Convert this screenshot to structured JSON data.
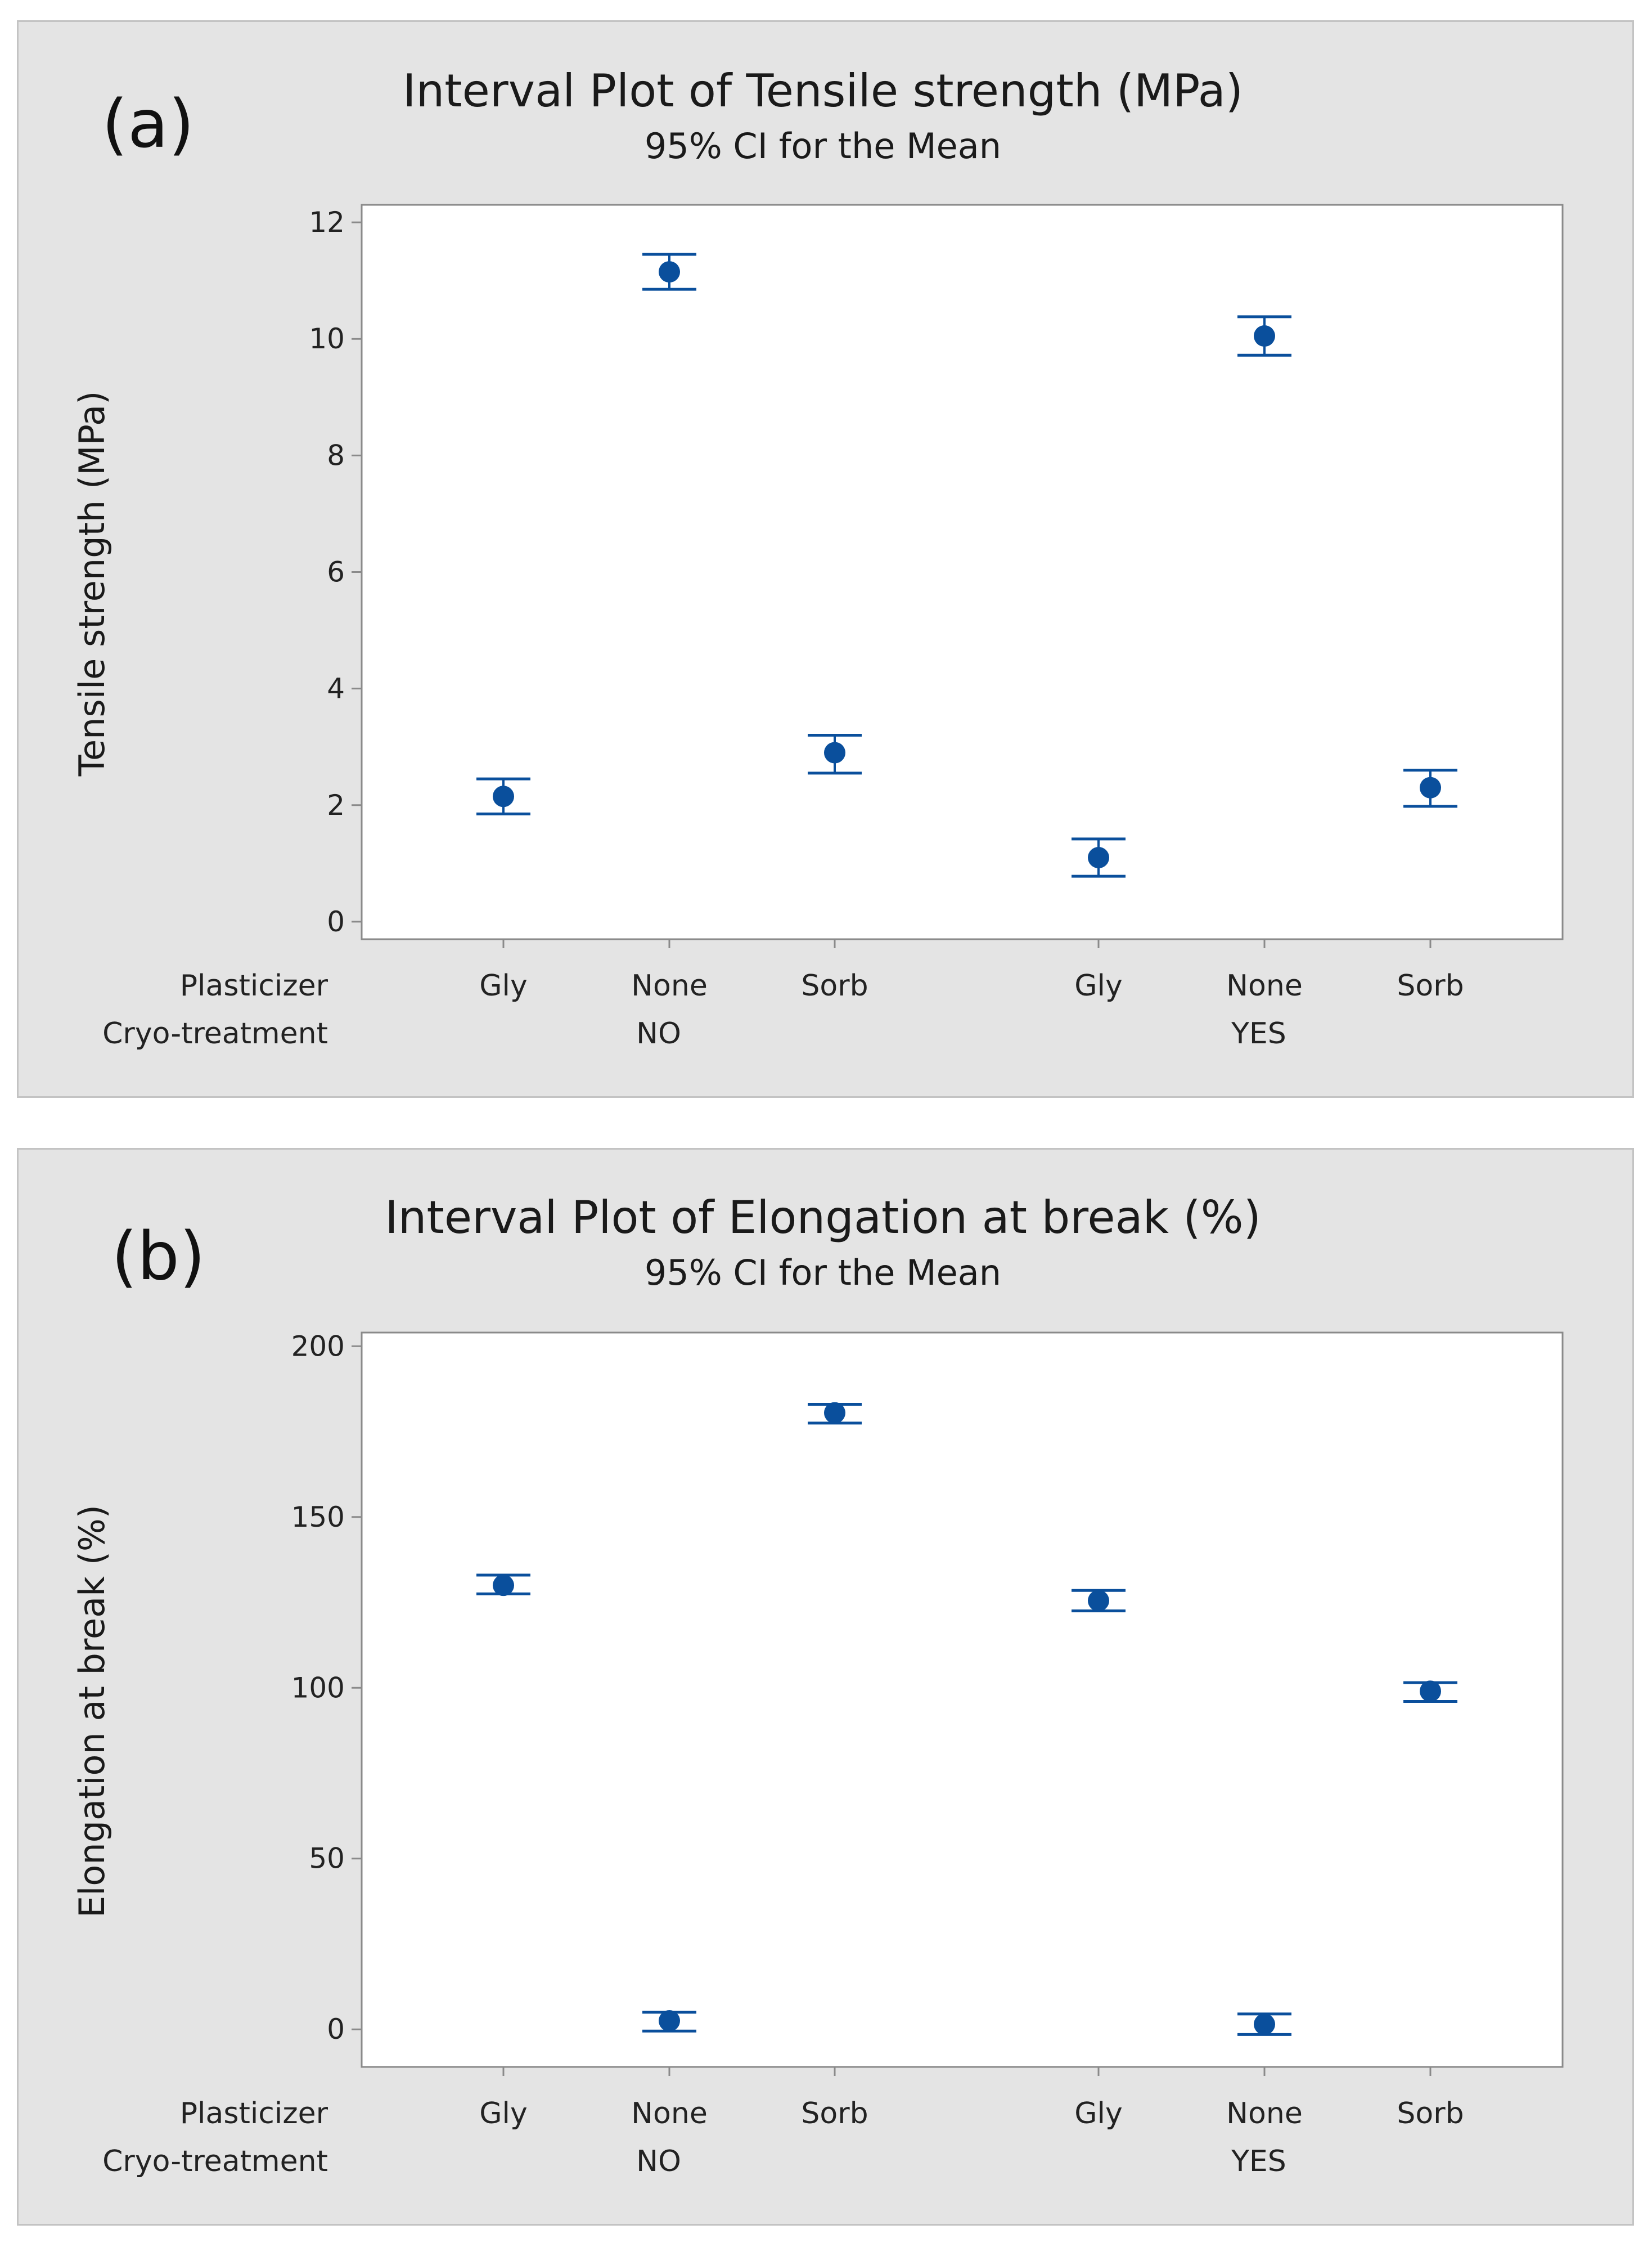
{
  "chart_data": [
    {
      "type": "interval",
      "panel_label": "(a)",
      "title": "Interval Plot of Tensile strength (MPa)",
      "subtitle": "95% CI for the Mean",
      "ylabel": "Tensile strength (MPa)",
      "ylim": [
        -0.3,
        12.3
      ],
      "yticks": [
        "0",
        "2",
        "4",
        "6",
        "8",
        "10",
        "12"
      ],
      "ytick_values": [
        0,
        2,
        4,
        6,
        8,
        10,
        12
      ],
      "x_factor_names": [
        "Plasticizer",
        "Cryo-treatment"
      ],
      "groups": [
        "NO",
        "YES"
      ],
      "categories": [
        "Gly",
        "None",
        "Sorb",
        "Gly",
        "None",
        "Sorb"
      ],
      "points": [
        {
          "plasticizer": "Gly",
          "cryo": "NO",
          "mean": 2.15,
          "lower": 1.85,
          "upper": 2.45
        },
        {
          "plasticizer": "None",
          "cryo": "NO",
          "mean": 11.15,
          "lower": 10.85,
          "upper": 11.45
        },
        {
          "plasticizer": "Sorb",
          "cryo": "NO",
          "mean": 2.9,
          "lower": 2.55,
          "upper": 3.2
        },
        {
          "plasticizer": "Gly",
          "cryo": "YES",
          "mean": 1.1,
          "lower": 0.78,
          "upper": 1.42
        },
        {
          "plasticizer": "None",
          "cryo": "YES",
          "mean": 10.05,
          "lower": 9.72,
          "upper": 10.38
        },
        {
          "plasticizer": "Sorb",
          "cryo": "YES",
          "mean": 2.3,
          "lower": 1.98,
          "upper": 2.6
        }
      ]
    },
    {
      "type": "interval",
      "panel_label": "(b)",
      "title": "Interval Plot of Elongation at break (%)",
      "subtitle": "95% CI for the Mean",
      "ylabel": "Elongation at break (%)",
      "ylim": [
        -11,
        204
      ],
      "yticks": [
        "0",
        "50",
        "100",
        "150",
        "200"
      ],
      "ytick_values": [
        0,
        50,
        100,
        150,
        200
      ],
      "x_factor_names": [
        "Plasticizer",
        "Cryo-treatment"
      ],
      "groups": [
        "NO",
        "YES"
      ],
      "categories": [
        "Gly",
        "None",
        "Sorb",
        "Gly",
        "None",
        "Sorb"
      ],
      "points": [
        {
          "plasticizer": "Gly",
          "cryo": "NO",
          "mean": 130,
          "lower": 127.5,
          "upper": 133
        },
        {
          "plasticizer": "None",
          "cryo": "NO",
          "mean": 2.5,
          "lower": -0.5,
          "upper": 5
        },
        {
          "plasticizer": "Sorb",
          "cryo": "NO",
          "mean": 180.5,
          "lower": 177.5,
          "upper": 183
        },
        {
          "plasticizer": "Gly",
          "cryo": "YES",
          "mean": 125.5,
          "lower": 122.5,
          "upper": 128.5
        },
        {
          "plasticizer": "None",
          "cryo": "YES",
          "mean": 1.5,
          "lower": -1.5,
          "upper": 4.5
        },
        {
          "plasticizer": "Sorb",
          "cryo": "YES",
          "mean": 99,
          "lower": 96,
          "upper": 101.5
        }
      ]
    }
  ],
  "colors": {
    "marker": "#0a4f9c",
    "panel_background": "#e4e4e4",
    "plot_background": "#ffffff",
    "axis": "#8a8a8a"
  }
}
